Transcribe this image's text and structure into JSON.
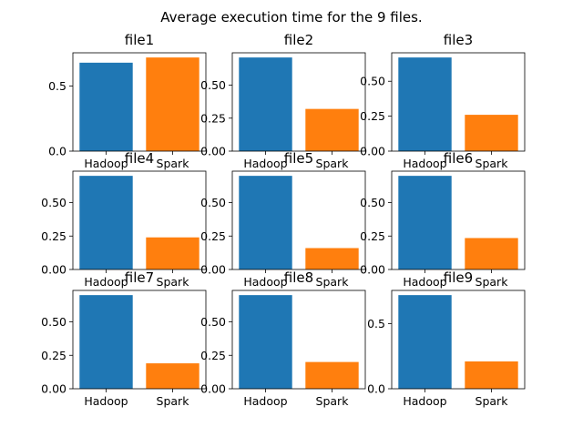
{
  "figure_title": "Average execution time for the 9 files.",
  "colors": {
    "Hadoop": "#1f77b4",
    "Spark": "#ff7f0e"
  },
  "chart_data": [
    {
      "type": "bar",
      "title": "file1",
      "categories": [
        "Hadoop",
        "Spark"
      ],
      "values": [
        0.68,
        0.72
      ],
      "ylim": [
        0,
        0.756
      ],
      "yticks": [
        0.0,
        0.5
      ],
      "ytick_labels": [
        "0.0",
        "0.5"
      ]
    },
    {
      "type": "bar",
      "title": "file2",
      "categories": [
        "Hadoop",
        "Spark"
      ],
      "values": [
        0.71,
        0.32
      ],
      "ylim": [
        0,
        0.7455
      ],
      "yticks": [
        0.0,
        0.25,
        0.5
      ],
      "ytick_labels": [
        "0.00",
        "0.25",
        "0.50"
      ]
    },
    {
      "type": "bar",
      "title": "file3",
      "categories": [
        "Hadoop",
        "Spark"
      ],
      "values": [
        0.67,
        0.26
      ],
      "ylim": [
        0,
        0.7035
      ],
      "yticks": [
        0.0,
        0.25,
        0.5
      ],
      "ytick_labels": [
        "0.00",
        "0.25",
        "0.50"
      ]
    },
    {
      "type": "bar",
      "title": "file4",
      "categories": [
        "Hadoop",
        "Spark"
      ],
      "values": [
        0.7,
        0.24
      ],
      "ylim": [
        0,
        0.735
      ],
      "yticks": [
        0.0,
        0.25,
        0.5
      ],
      "ytick_labels": [
        "0.00",
        "0.25",
        "0.50"
      ]
    },
    {
      "type": "bar",
      "title": "file5",
      "categories": [
        "Hadoop",
        "Spark"
      ],
      "values": [
        0.7,
        0.16
      ],
      "ylim": [
        0,
        0.735
      ],
      "yticks": [
        0.0,
        0.25,
        0.5
      ],
      "ytick_labels": [
        "0.00",
        "0.25",
        "0.50"
      ]
    },
    {
      "type": "bar",
      "title": "file6",
      "categories": [
        "Hadoop",
        "Spark"
      ],
      "values": [
        0.7,
        0.235
      ],
      "ylim": [
        0,
        0.735
      ],
      "yticks": [
        0.0,
        0.25,
        0.5
      ],
      "ytick_labels": [
        "0.00",
        "0.25",
        "0.50"
      ]
    },
    {
      "type": "bar",
      "title": "file7",
      "categories": [
        "Hadoop",
        "Spark"
      ],
      "values": [
        0.7,
        0.19
      ],
      "ylim": [
        0,
        0.735
      ],
      "yticks": [
        0.0,
        0.25,
        0.5
      ],
      "ytick_labels": [
        "0.00",
        "0.25",
        "0.50"
      ]
    },
    {
      "type": "bar",
      "title": "file8",
      "categories": [
        "Hadoop",
        "Spark"
      ],
      "values": [
        0.7,
        0.2
      ],
      "ylim": [
        0,
        0.735
      ],
      "yticks": [
        0.0,
        0.25,
        0.5
      ],
      "ytick_labels": [
        "0.00",
        "0.25",
        "0.50"
      ]
    },
    {
      "type": "bar",
      "title": "file9",
      "categories": [
        "Hadoop",
        "Spark"
      ],
      "values": [
        0.72,
        0.21
      ],
      "ylim": [
        0,
        0.756
      ],
      "yticks": [
        0.0,
        0.5
      ],
      "ytick_labels": [
        "0.0",
        "0.5"
      ]
    }
  ]
}
